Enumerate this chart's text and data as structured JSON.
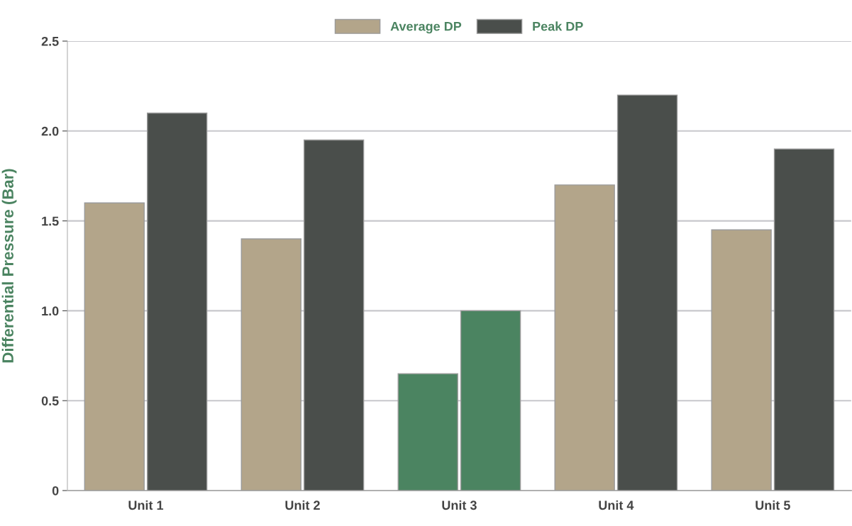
{
  "chart_data": {
    "type": "bar",
    "ylabel": "Differential Pressure (Bar)",
    "categories": [
      "Unit 1",
      "Unit 2",
      "Unit 3",
      "Unit 4",
      "Unit 5"
    ],
    "series": [
      {
        "name": "Average DP",
        "color": "#b3a58a",
        "colors": [
          "#b3a58a",
          "#b3a58a",
          "#4b8461",
          "#b3a58a",
          "#b3a58a"
        ],
        "values": [
          1.6,
          1.4,
          0.65,
          1.7,
          1.45
        ]
      },
      {
        "name": "Peak DP",
        "color": "#4a4e4b",
        "colors": [
          "#4a4e4b",
          "#4a4e4b",
          "#4b8461",
          "#4a4e4b",
          "#4a4e4b"
        ],
        "values": [
          2.1,
          1.95,
          1.0,
          2.2,
          1.9
        ]
      }
    ],
    "ylim": [
      0,
      2.5
    ],
    "yticks": [
      0,
      {
        "value": 0.5,
        "label": "0.5"
      },
      {
        "value": 1.0,
        "label": "1.0"
      },
      {
        "value": 1.5,
        "label": "1.5"
      },
      {
        "value": 2.0,
        "label": "2.0"
      },
      {
        "value": 2.5,
        "label": "2.5"
      }
    ],
    "grid": "y",
    "legend": "top"
  }
}
